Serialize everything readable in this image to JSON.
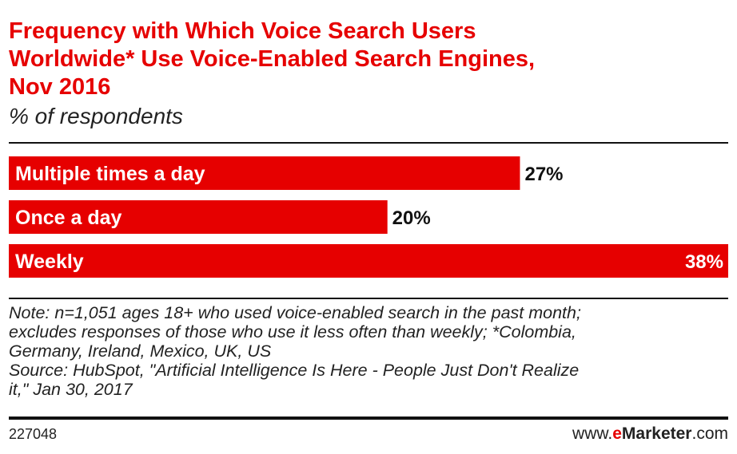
{
  "title_lines": [
    "Frequency with Which Voice Search Users",
    "Worldwide* Use Voice-Enabled Search Engines,",
    "Nov 2016"
  ],
  "subtitle": "% of respondents",
  "chart_data": {
    "type": "bar",
    "orientation": "horizontal",
    "categories": [
      "Multiple times a day",
      "Once a day",
      "Weekly"
    ],
    "values": [
      27,
      20,
      38
    ],
    "value_labels": [
      "27%",
      "20%",
      "38%"
    ],
    "title": "Frequency with Which Voice Search Users Worldwide* Use Voice-Enabled Search Engines, Nov 2016",
    "subtitle": "% of respondents",
    "xlim": [
      0,
      38
    ],
    "grid": false,
    "legend": "none",
    "bar_color": "#e60000"
  },
  "note_lines": [
    "Note: n=1,051 ages 18+ who used voice-enabled search in the past month;",
    "excludes responses of those who use it less often than weekly; *Colombia,",
    "Germany, Ireland, Mexico, UK, US",
    "Source: HubSpot, \"Artificial Intelligence Is Here - People Just Don't Realize",
    "it,\" Jan 30, 2017"
  ],
  "footer": {
    "chart_id": "227048",
    "brand_prefix": "www.",
    "brand_e": "e",
    "brand_name": "Marketer",
    "brand_suffix": ".com"
  },
  "colors": {
    "accent": "#e60000",
    "text": "#222222",
    "rule": "#111111"
  }
}
